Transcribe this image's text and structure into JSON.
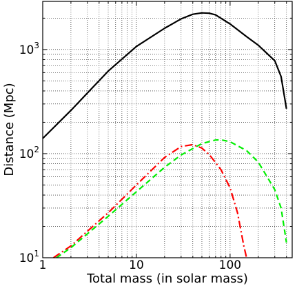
{
  "chart_data": {
    "type": "line",
    "xscale": "log",
    "yscale": "log",
    "xlim": [
      1,
      460
    ],
    "ylim": [
      10,
      2900
    ],
    "grid": true,
    "xlabel": "Total mass (in solar mass)",
    "ylabel": "Distance (Mpc)",
    "xticks": [
      {
        "value": 1,
        "label": "1"
      },
      {
        "value": 10,
        "label": "10"
      },
      {
        "value": 100,
        "label": "100"
      }
    ],
    "yticks": [
      {
        "value": 10,
        "label": "10",
        "exp": "1"
      },
      {
        "value": 100,
        "label": "10",
        "exp": "2"
      },
      {
        "value": 1000,
        "label": "10",
        "exp": "3"
      }
    ],
    "series": [
      {
        "color": "#000000",
        "style": "solid",
        "x": [
          1,
          2,
          5,
          10,
          20,
          30,
          40,
          50,
          60,
          70,
          100,
          150,
          200,
          300,
          350,
          400
        ],
        "y": [
          140,
          260,
          620,
          1070,
          1600,
          1970,
          2180,
          2250,
          2230,
          2150,
          1760,
          1330,
          1100,
          780,
          550,
          270
        ]
      },
      {
        "color": "#ff0000",
        "style": "dashdot",
        "x": [
          1.3,
          2,
          3,
          5,
          10,
          20,
          30,
          40,
          50,
          60,
          70,
          80,
          100,
          120,
          140,
          150
        ],
        "y": [
          10,
          13,
          18,
          27,
          50,
          92,
          117,
          122,
          113,
          98,
          82,
          70,
          47,
          27,
          13,
          10
        ]
      },
      {
        "color": "#00ee00",
        "style": "dashed",
        "x": [
          1.4,
          2,
          3,
          5,
          10,
          20,
          30,
          50,
          70,
          80,
          100,
          150,
          200,
          300,
          350,
          400
        ],
        "y": [
          10,
          12.5,
          17,
          25,
          43,
          74,
          97,
          125,
          135,
          136,
          130,
          107,
          83,
          45,
          30,
          14
        ]
      }
    ]
  }
}
